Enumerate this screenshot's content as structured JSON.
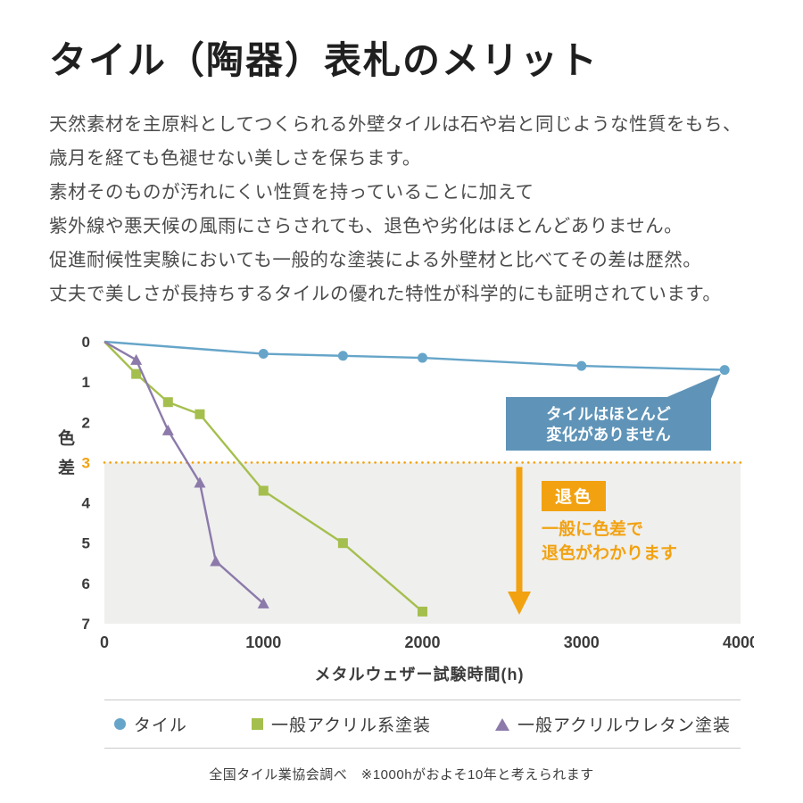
{
  "page": {
    "title": "タイル（陶器）表札のメリット",
    "intro_lines": [
      "天然素材を主原料としてつくられる外壁タイルは石や岩と同じような性質をもち、",
      "歳月を経ても色褪せない美しさを保ちます。",
      "素材そのものが汚れにくい性質を持っていることに加えて",
      "紫外線や悪天候の風雨にさらされても、退色や劣化はほとんどありません。",
      "促進耐候性実験においても一般的な塗装による外壁材と比べてその差は歴然。",
      "丈夫で美しさが長持ちするタイルの優れた特性が科学的にも証明されています。"
    ],
    "footnote": "全国タイル業協会調べ　※1000hがおよそ10年と考えられます"
  },
  "chart_data": {
    "type": "line",
    "xlabel": "メタルウェザー試験時間(h)",
    "ylabel": "色差",
    "xlim": [
      0,
      4000
    ],
    "ylim": [
      0,
      7
    ],
    "y_axis": {
      "inverted": true,
      "ticks": [
        0,
        1,
        2,
        3,
        4,
        5,
        6,
        7
      ],
      "highlight_tick": 3,
      "highlight_color": "#f2a210"
    },
    "x_ticks": [
      0,
      1000,
      2000,
      3000,
      4000
    ],
    "grid": false,
    "threshold_line": {
      "y": 3,
      "color": "#f2a210",
      "style": "dotted"
    },
    "shaded_region": {
      "y_from": 3,
      "y_to": 7,
      "color": "#efefee"
    },
    "series": [
      {
        "name": "タイル",
        "marker": "circle",
        "color": "#66a5c9",
        "x": [
          0,
          1000,
          1500,
          2000,
          3000,
          3900
        ],
        "y": [
          0,
          0.3,
          0.35,
          0.4,
          0.6,
          0.7
        ]
      },
      {
        "name": "一般アクリル系塗装",
        "marker": "square",
        "color": "#a5bf4e",
        "x": [
          0,
          200,
          400,
          600,
          1000,
          1500,
          2000
        ],
        "y": [
          0,
          0.8,
          1.5,
          1.8,
          3.7,
          5.0,
          6.7
        ]
      },
      {
        "name": "一般アクリルウレタン塗装",
        "marker": "triangle",
        "color": "#8c7aaa",
        "x": [
          0,
          200,
          400,
          600,
          700,
          1000
        ],
        "y": [
          0,
          0.45,
          2.2,
          3.5,
          5.45,
          6.5
        ]
      }
    ],
    "annotations": {
      "tile_callout": {
        "lines": [
          "タイルはほとんど",
          "変化がありません"
        ],
        "bg_color": "#5f94b8",
        "text_color": "#ffffff"
      },
      "fade_badge": {
        "label": "退色",
        "bg_color": "#f2a210",
        "text_color": "#ffffff"
      },
      "fade_note_lines": [
        "一般に色差で",
        "退色がわかります"
      ],
      "fade_note_color": "#f2a210"
    },
    "legend": {
      "position": "bottom",
      "items": [
        "タイル",
        "一般アクリル系塗装",
        "一般アクリルウレタン塗装"
      ]
    }
  }
}
